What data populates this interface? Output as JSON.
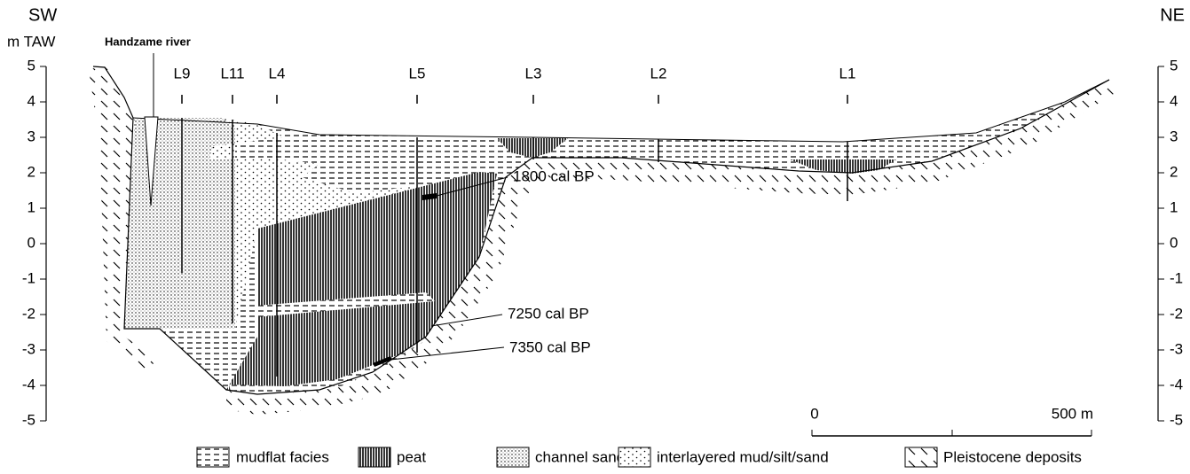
{
  "header": {
    "left": "SW",
    "right": "NE",
    "axis_unit": "m TAW",
    "river": "Handzame river"
  },
  "left_axis": {
    "ticks": [
      5,
      4,
      3,
      2,
      1,
      0,
      -1,
      -2,
      -3,
      -4,
      -5
    ]
  },
  "right_axis": {
    "ticks": [
      5,
      4,
      3,
      2,
      1,
      0,
      -1,
      -2,
      -3,
      -4,
      -5
    ]
  },
  "cores": [
    "L9",
    "L11",
    "L4",
    "L5",
    "L3",
    "L2",
    "L1"
  ],
  "dates": [
    "1800 cal BP",
    "7250 cal BP",
    "7350 cal BP"
  ],
  "scale": {
    "start": "0",
    "end": "500 m"
  },
  "legend": [
    "mudflat facies",
    "peat",
    "channel sand",
    "interlayered mud/silt/sand",
    "Pleistocene deposits"
  ]
}
